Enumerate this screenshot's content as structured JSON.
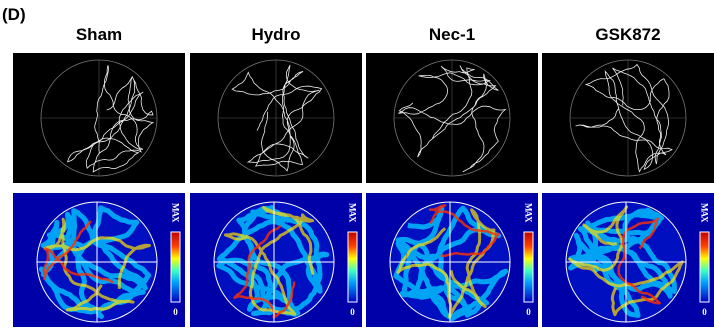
{
  "panel_label": "(D)",
  "columns": [
    "Sham",
    "Hydro",
    "Nec-1",
    "GSK872"
  ],
  "colorbar": {
    "max_label": "MAX",
    "min_label": "0"
  }
}
